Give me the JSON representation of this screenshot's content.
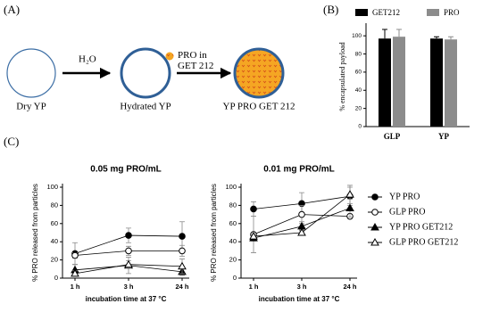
{
  "panel_labels": [
    "(A)",
    "(B)",
    "(C)"
  ],
  "diagram": {
    "step_labels": [
      "H₂O",
      "PRO in GET 212"
    ],
    "states": [
      "Dry YP",
      "Hydrated YP",
      "YP PRO GET 212"
    ]
  },
  "chart_data": [
    {
      "type": "bar",
      "ylabel": "% encapsulated payload",
      "categories": [
        "GLP",
        "YP"
      ],
      "series": [
        {
          "name": "GET212",
          "color": "#000000",
          "values": [
            97,
            97
          ],
          "errors": [
            10,
            2
          ]
        },
        {
          "name": "PRO",
          "color": "#8c8c8c",
          "values": [
            99,
            96
          ],
          "errors": [
            8,
            3
          ]
        }
      ],
      "ylim": [
        0,
        110
      ],
      "yticks": [
        0,
        20,
        40,
        60,
        80,
        100
      ],
      "legend": "top"
    },
    {
      "type": "line",
      "title": "0.05 mg PRO/mL",
      "ylabel": "% PRO released from particles",
      "xlabel": "incubation time at 37 °C",
      "categories": [
        "1 h",
        "3 h",
        "24 h"
      ],
      "ylim": [
        0,
        100
      ],
      "yticks": [
        0,
        20,
        40,
        60,
        80,
        100
      ],
      "series": [
        {
          "marker": "circle",
          "filled": true,
          "values": [
            27,
            47,
            46
          ],
          "errors": [
            12,
            8,
            16
          ]
        },
        {
          "marker": "circle",
          "filled": false,
          "values": [
            25,
            30,
            30
          ],
          "errors": [
            3,
            5,
            6
          ]
        },
        {
          "marker": "triangle",
          "filled": true,
          "values": [
            9,
            14,
            7
          ],
          "errors": [
            6,
            9,
            4
          ]
        },
        {
          "marker": "triangle",
          "filled": false,
          "values": [
            5,
            15,
            13
          ],
          "errors": [
            3,
            4,
            8
          ]
        }
      ]
    },
    {
      "type": "line",
      "title": "0.01 mg PRO/mL",
      "ylabel": "% PRO released from particles",
      "xlabel": "incubation time at 37 °C",
      "categories": [
        "1 h",
        "3 h",
        "24 h"
      ],
      "ylim": [
        0,
        100
      ],
      "yticks": [
        0,
        20,
        40,
        60,
        80,
        100
      ],
      "legend": "right",
      "series": [
        {
          "name": "YP  PRO",
          "marker": "circle",
          "filled": true,
          "values": [
            76,
            82,
            90
          ],
          "errors": [
            8,
            12,
            10
          ]
        },
        {
          "name": "GLP PRO",
          "marker": "circle",
          "filled": false,
          "values": [
            48,
            70,
            68
          ],
          "errors": [
            20,
            10,
            2
          ]
        },
        {
          "name": "YP PRO GET212",
          "marker": "triangle",
          "filled": true,
          "values": [
            44,
            57,
            77
          ],
          "errors": [
            3,
            5,
            10
          ]
        },
        {
          "name": "GLP PRO GET212",
          "marker": "triangle",
          "filled": false,
          "values": [
            46,
            50,
            92
          ],
          "errors": [
            3,
            3,
            10
          ]
        }
      ]
    }
  ]
}
